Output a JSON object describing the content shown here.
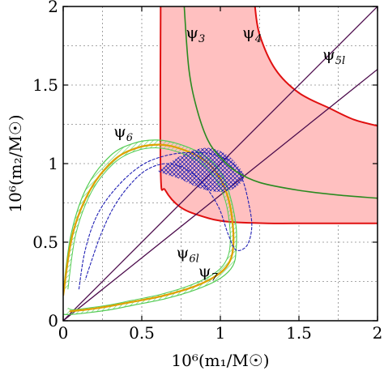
{
  "chart_data": {
    "type": "line",
    "title": "",
    "xlabel": "10⁶(m₁/M☉)",
    "ylabel": "10⁶(m₂/M☉)",
    "xlim": [
      0,
      2
    ],
    "ylim": [
      0,
      2
    ],
    "xticks": [
      "0",
      "0.5",
      "1",
      "1.5",
      "2"
    ],
    "yticks": [
      "0",
      "0.5",
      "1",
      "1.5",
      "2"
    ],
    "grid": true,
    "colors": {
      "psi4_fill": "#ffc0c0",
      "psi4_edge": "#e01010",
      "psi3": "#2a8a20",
      "psi5_line": "#4b0a4b",
      "psi6_hatch": "#b4f0b4",
      "psi6_edge": "#1f1fb4",
      "psi7_fill": "#fff0b0",
      "psi7_edge": "#e0a000"
    },
    "labels": {
      "psi3": "ψ3",
      "psi4": "ψ4",
      "psi5l": "ψ5l",
      "psi6": "ψ6",
      "psi6l": "ψ6l",
      "psi7": "ψ7"
    },
    "series": [
      {
        "key": "psi4",
        "kind": "band",
        "description_values": "red shaded band bounded by two curves",
        "outer": [
          [
            0.62,
            2.0
          ],
          [
            0.62,
            0.95
          ],
          [
            0.65,
            0.83
          ],
          [
            0.75,
            0.72
          ],
          [
            0.9,
            0.66
          ],
          [
            1.05,
            0.63
          ],
          [
            1.3,
            0.62
          ],
          [
            1.6,
            0.62
          ],
          [
            2.0,
            0.62
          ]
        ],
        "inner": [
          [
            1.22,
            2.0
          ],
          [
            1.25,
            1.82
          ],
          [
            1.35,
            1.6
          ],
          [
            1.5,
            1.45
          ],
          [
            1.7,
            1.35
          ],
          [
            1.85,
            1.28
          ],
          [
            2.0,
            1.24
          ]
        ]
      },
      {
        "key": "psi3",
        "kind": "line",
        "points": [
          [
            0.77,
            2.0
          ],
          [
            0.8,
            1.6
          ],
          [
            0.85,
            1.35
          ],
          [
            0.92,
            1.15
          ],
          [
            1.0,
            1.04
          ],
          [
            1.1,
            0.95
          ],
          [
            1.25,
            0.88
          ],
          [
            1.5,
            0.83
          ],
          [
            1.75,
            0.8
          ],
          [
            2.0,
            0.78
          ]
        ]
      },
      {
        "key": "psi5l_a",
        "kind": "line",
        "points": [
          [
            0.0,
            0.0
          ],
          [
            2.0,
            2.0
          ]
        ]
      },
      {
        "key": "psi5l_b",
        "kind": "line",
        "points": [
          [
            0.0,
            0.0
          ],
          [
            2.0,
            1.6
          ]
        ]
      },
      {
        "key": "psi6",
        "kind": "loop",
        "outer": [
          [
            0.0,
            0.18
          ],
          [
            0.05,
            0.55
          ],
          [
            0.15,
            0.85
          ],
          [
            0.3,
            1.05
          ],
          [
            0.45,
            1.13
          ],
          [
            0.6,
            1.15
          ],
          [
            0.75,
            1.12
          ],
          [
            0.9,
            1.05
          ],
          [
            1.0,
            0.95
          ],
          [
            1.06,
            0.8
          ],
          [
            1.1,
            0.6
          ],
          [
            1.1,
            0.45
          ],
          [
            1.08,
            0.35
          ],
          [
            1.0,
            0.27
          ],
          [
            0.85,
            0.2
          ],
          [
            0.65,
            0.14
          ],
          [
            0.45,
            0.1
          ],
          [
            0.3,
            0.07
          ],
          [
            0.15,
            0.05
          ],
          [
            0.05,
            0.04
          ],
          [
            0.0,
            0.04
          ]
        ],
        "inner": [
          [
            0.03,
            0.2
          ],
          [
            0.08,
            0.55
          ],
          [
            0.18,
            0.82
          ],
          [
            0.32,
            1.0
          ],
          [
            0.46,
            1.08
          ],
          [
            0.6,
            1.1
          ],
          [
            0.74,
            1.07
          ],
          [
            0.88,
            1.0
          ],
          [
            0.97,
            0.9
          ],
          [
            1.03,
            0.77
          ],
          [
            1.06,
            0.6
          ],
          [
            1.06,
            0.46
          ],
          [
            1.03,
            0.37
          ],
          [
            0.96,
            0.3
          ],
          [
            0.82,
            0.23
          ],
          [
            0.63,
            0.17
          ],
          [
            0.44,
            0.13
          ],
          [
            0.29,
            0.1
          ],
          [
            0.15,
            0.08
          ],
          [
            0.06,
            0.07
          ],
          [
            0.03,
            0.08
          ]
        ]
      },
      {
        "key": "psi6l",
        "kind": "loop",
        "outer": [
          [
            0.1,
            0.2
          ],
          [
            0.14,
            0.45
          ],
          [
            0.22,
            0.68
          ],
          [
            0.35,
            0.86
          ],
          [
            0.5,
            0.99
          ],
          [
            0.65,
            1.05
          ],
          [
            0.8,
            1.07
          ],
          [
            0.95,
            1.06
          ],
          [
            1.08,
            1.0
          ],
          [
            1.14,
            0.9
          ],
          [
            1.18,
            0.75
          ],
          [
            1.2,
            0.6
          ],
          [
            1.17,
            0.48
          ],
          [
            1.1,
            0.45
          ],
          [
            1.05,
            0.55
          ],
          [
            0.99,
            0.72
          ],
          [
            0.9,
            0.86
          ],
          [
            0.79,
            0.96
          ],
          [
            0.66,
            1.0
          ],
          [
            0.53,
            0.96
          ],
          [
            0.42,
            0.86
          ],
          [
            0.32,
            0.72
          ],
          [
            0.24,
            0.55
          ],
          [
            0.18,
            0.38
          ],
          [
            0.14,
            0.26
          ]
        ],
        "hatch_region": [
          [
            0.6,
            0.95
          ],
          [
            0.75,
            1.05
          ],
          [
            0.9,
            1.1
          ],
          [
            1.02,
            1.07
          ],
          [
            1.1,
            1.0
          ],
          [
            1.15,
            0.92
          ],
          [
            1.1,
            0.85
          ],
          [
            1.0,
            0.82
          ],
          [
            0.88,
            0.84
          ],
          [
            0.75,
            0.9
          ]
        ]
      },
      {
        "key": "psi7",
        "kind": "line",
        "points": [
          [
            0.0,
            0.16
          ],
          [
            0.06,
            0.55
          ],
          [
            0.17,
            0.83
          ],
          [
            0.32,
            1.02
          ],
          [
            0.47,
            1.1
          ],
          [
            0.62,
            1.12
          ],
          [
            0.76,
            1.09
          ],
          [
            0.9,
            1.02
          ],
          [
            0.99,
            0.92
          ],
          [
            1.05,
            0.78
          ],
          [
            1.08,
            0.6
          ],
          [
            1.08,
            0.45
          ],
          [
            1.05,
            0.36
          ],
          [
            0.98,
            0.29
          ],
          [
            0.84,
            0.22
          ],
          [
            0.64,
            0.16
          ],
          [
            0.44,
            0.12
          ],
          [
            0.28,
            0.09
          ],
          [
            0.14,
            0.07
          ],
          [
            0.04,
            0.06
          ]
        ]
      }
    ]
  }
}
